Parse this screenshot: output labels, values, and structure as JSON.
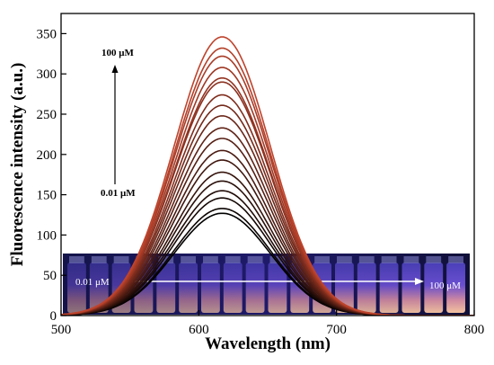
{
  "chart_data": {
    "type": "line",
    "title": "",
    "xlabel": "Wavelength (nm)",
    "ylabel": "Fluorescence intensity (a.u.)",
    "xlim": [
      500,
      800
    ],
    "ylim": [
      0,
      375
    ],
    "xticks": [
      500,
      600,
      700,
      800
    ],
    "yticks": [
      0,
      50,
      100,
      150,
      200,
      250,
      300,
      350
    ],
    "grid": false,
    "peak_wavelength_nm": 617,
    "curve_width_sigma_nm": 35,
    "series_peak_intensities": [
      127,
      133,
      146,
      155,
      167,
      178,
      193,
      205,
      220,
      233,
      248,
      261,
      274,
      290,
      295,
      308,
      322,
      332,
      346
    ],
    "series_colors": [
      "#000000",
      "#0b0402",
      "#150805",
      "#200b07",
      "#2a0f0a",
      "#35130c",
      "#40170e",
      "#4a1a11",
      "#551e13",
      "#5f2216",
      "#6a2618",
      "#74291a",
      "#7f2d1d",
      "#8a3120",
      "#943422",
      "#9f3824",
      "#a93c27",
      "#b44029",
      "#be432c"
    ],
    "annotations": {
      "top_label": "100 μM",
      "bottom_label": "0.01 μM",
      "arrow_direction": "up"
    },
    "inset": {
      "description_label_left": "0.01 μM",
      "description_label_right": "100 μM",
      "vial_count": 18,
      "arrow_direction": "right"
    }
  }
}
